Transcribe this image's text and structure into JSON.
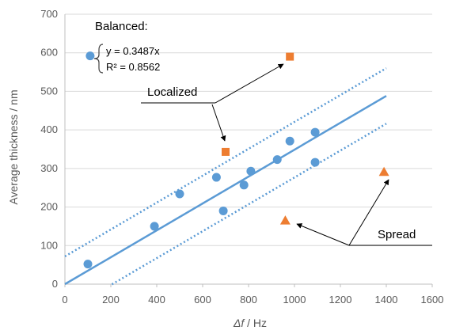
{
  "chart_data": {
    "type": "scatter",
    "xlabel_italic": "Δf",
    "xlabel_unit": " / Hz",
    "ylabel": "Average thickness / nm",
    "xlim": [
      0,
      1600
    ],
    "ylim": [
      0,
      700
    ],
    "xticks": [
      0,
      200,
      400,
      600,
      800,
      1000,
      1200,
      1400,
      1600
    ],
    "yticks": [
      0,
      100,
      200,
      300,
      400,
      500,
      600,
      700
    ],
    "grid": "horizontal",
    "colors": {
      "balanced": "#5B9BD5",
      "localized": "#ED7D31",
      "spread": "#ED7D31",
      "axis": "#BFBFBF",
      "grid": "#D9D9D9",
      "text": "#595959"
    },
    "series": [
      {
        "name": "Balanced",
        "marker": "circle",
        "points": [
          [
            100,
            52
          ],
          [
            390,
            150
          ],
          [
            500,
            234
          ],
          [
            660,
            277
          ],
          [
            690,
            190
          ],
          [
            780,
            257
          ],
          [
            810,
            293
          ],
          [
            925,
            323
          ],
          [
            980,
            371
          ],
          [
            1090,
            394
          ],
          [
            1090,
            316
          ]
        ]
      },
      {
        "name": "Localized",
        "marker": "square",
        "points": [
          [
            700,
            343
          ],
          [
            980,
            590
          ]
        ]
      },
      {
        "name": "Spread",
        "marker": "triangle",
        "points": [
          [
            960,
            165
          ],
          [
            1390,
            291
          ]
        ]
      }
    ],
    "fit": {
      "slope": 0.3487,
      "x_range": [
        0,
        1400
      ]
    },
    "bounds": [
      {
        "intercept": 72,
        "x_range": [
          0,
          1400
        ]
      },
      {
        "intercept": -72,
        "x_range": [
          205,
          1400
        ]
      }
    ],
    "legend": {
      "title": "Balanced:",
      "equation": "y = 0.3487x",
      "r2": "R² = 0.8562",
      "marker_point": [
        110,
        592
      ]
    },
    "annotations": {
      "localized_label": "Localized",
      "spread_label": "Spread"
    }
  }
}
